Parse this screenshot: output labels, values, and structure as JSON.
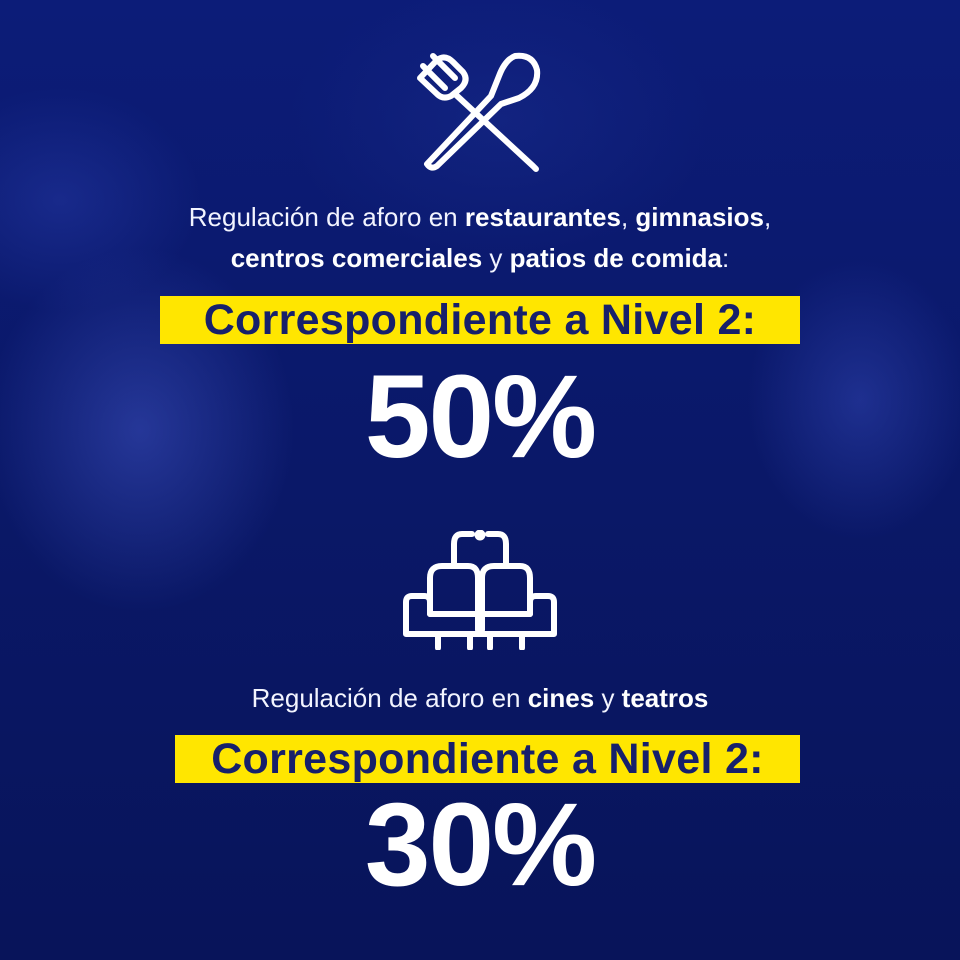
{
  "section_food": {
    "icon": "fork-spoon-icon",
    "line1_prefix": "Regulación de aforo en ",
    "line1_bold1": "restaurantes",
    "line1_sep": ", ",
    "line1_bold2": "gimnasios",
    "line1_end": ",",
    "line2_bold1": "centros comerciales",
    "line2_mid": " y ",
    "line2_bold2": "patios de comida",
    "line2_end": ":",
    "band_label": "Correspondiente a Nivel 2:",
    "percentage": "50%"
  },
  "section_cinema": {
    "icon": "cinema-seats-icon",
    "line_prefix": "Regulación de aforo en ",
    "line_bold1": "cines",
    "line_mid": " y ",
    "line_bold2": "teatros",
    "band_label": "Correspondiente a Nivel 2:",
    "percentage": "30%"
  },
  "colors": {
    "background": "#0b1a6e",
    "band": "#ffe600",
    "band_text": "#17206b",
    "text": "#ffffff"
  }
}
